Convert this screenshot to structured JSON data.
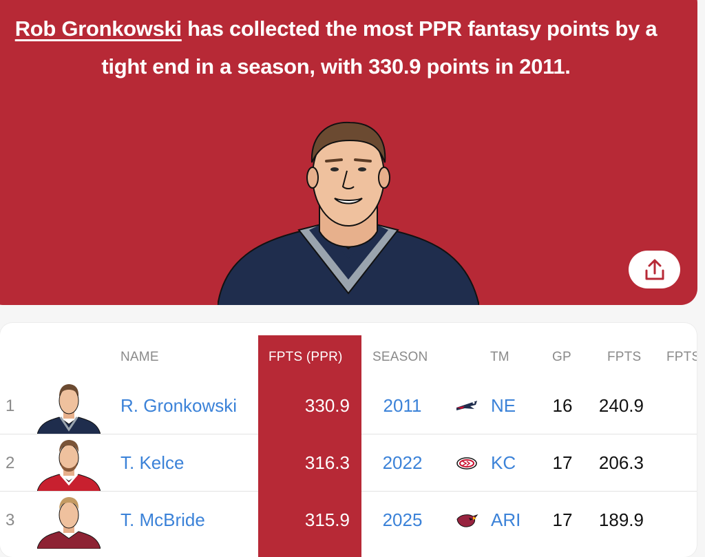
{
  "headline": {
    "player_link": "Rob Gronkowski",
    "rest": " has collected the most PPR fantasy points by a tight end in a season, with 330.9 points in 2011."
  },
  "colors": {
    "accent": "#b72936",
    "link": "#3b82d8"
  },
  "table": {
    "headers": {
      "name": "NAME",
      "fpts_ppr": "FPTS (PPR)",
      "season": "SEASON",
      "tm": "TM",
      "gp": "GP",
      "fpts": "FPTS",
      "fpts_cut": "FPTS"
    },
    "rows": [
      {
        "rank": "1",
        "name": "R. Gronkowski",
        "fpts_ppr": "330.9",
        "season": "2011",
        "team_logo": "patriots-logo",
        "tm": "NE",
        "gp": "16",
        "fpts": "240.9"
      },
      {
        "rank": "2",
        "name": "T. Kelce",
        "fpts_ppr": "316.3",
        "season": "2022",
        "team_logo": "chiefs-logo",
        "tm": "KC",
        "gp": "17",
        "fpts": "206.3"
      },
      {
        "rank": "3",
        "name": "T. McBride",
        "fpts_ppr": "315.9",
        "season": "2025",
        "team_logo": "cardinals-logo",
        "tm": "ARI",
        "gp": "17",
        "fpts": "189.9"
      }
    ]
  },
  "icons": {
    "share": "share-upload-icon"
  }
}
